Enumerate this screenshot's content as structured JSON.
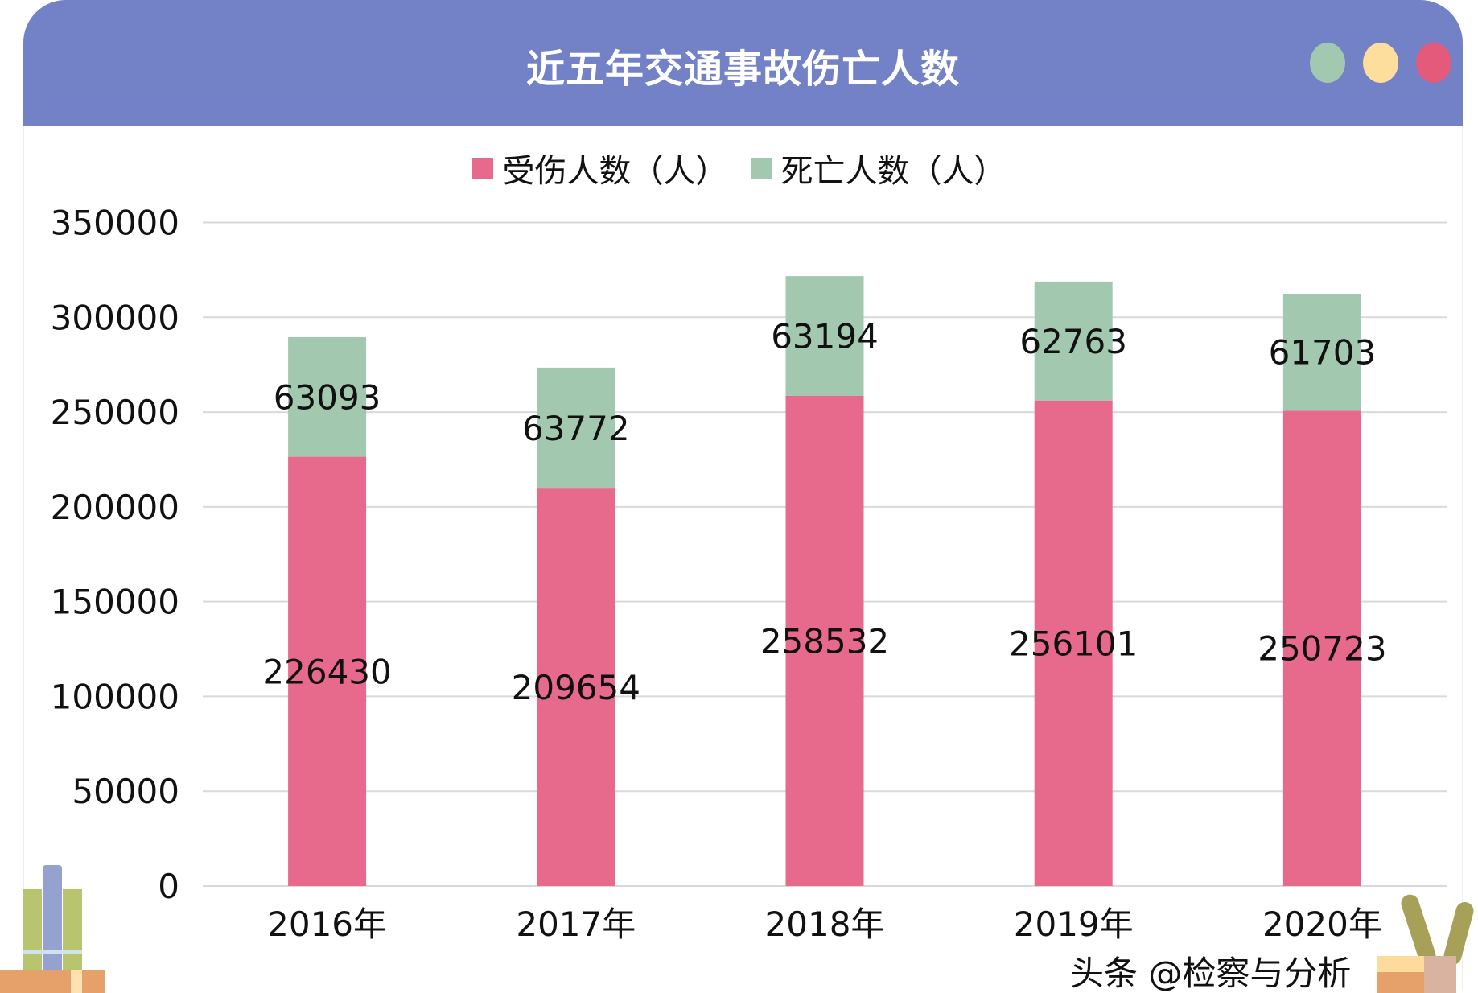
{
  "header": {
    "title": "近五年交通事故伤亡人数",
    "dots": [
      "#A2C8B0",
      "#FEDE9D",
      "#E35A7A"
    ],
    "background": "#7382C6"
  },
  "watermark": "头条 @检察与分析",
  "chart_data": {
    "type": "bar",
    "stacked": true,
    "title": "近五年交通事故伤亡人数",
    "categories": [
      "2016年",
      "2017年",
      "2018年",
      "2019年",
      "2020年"
    ],
    "series": [
      {
        "name": "受伤人数（人）",
        "color": "#E76A8C",
        "values": [
          226430,
          209654,
          258532,
          256101,
          250723
        ]
      },
      {
        "name": "死亡人数（人）",
        "color": "#A2C8B0",
        "values": [
          63093,
          63772,
          63194,
          62763,
          61703
        ]
      }
    ],
    "ylim": [
      0,
      350000
    ],
    "yticks": [
      "0",
      "50000",
      "100000",
      "150000",
      "200000",
      "250000",
      "300000",
      "350000"
    ],
    "grid": true,
    "legend": "top",
    "data_labels": true
  }
}
